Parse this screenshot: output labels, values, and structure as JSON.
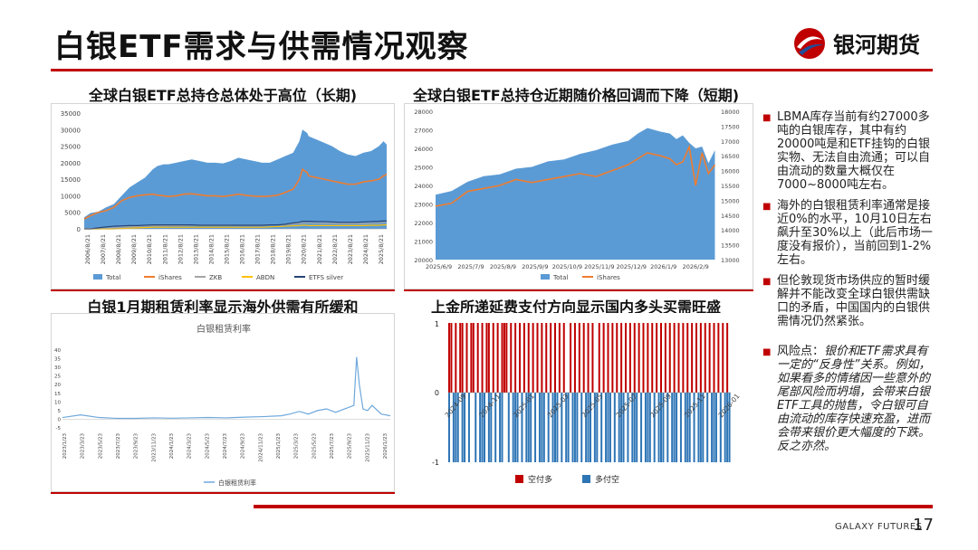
{
  "header": {
    "title": "白银ETF需求与供需情况观察",
    "logo_text": "银河期货"
  },
  "panels": {
    "tl_title": "全球白银ETF总持仓总体处于高位（长期)",
    "tr_title": "全球白银ETF总持仓近期随价格回调而下降（短期)",
    "bl_title": "白银1月期租赁利率显示海外供需有所缓和",
    "br_title": "上金所递延费支付方向显示国内多头买需旺盛"
  },
  "bullets": [
    "LBMA库存当前有约27000多吨的白银库存，其中有约20000吨是和ETF挂钩的白银实物、无法自由流通；可以自由流动的数量大概仅在7000~8000吨左右。",
    "海外的白银租赁利率通常是接近0%的水平，10月10日左右飙升至30%以上（此后市场一度没有报价），当前回到1-2%左右。",
    "但伦敦现货市场供应的暂时缓解并不能改变全球白银供需缺口的矛盾，中国国内的白银供需情况仍然紧张。"
  ],
  "risk": {
    "label": "风险点：",
    "body": "银价和ETF需求具有一定的“反身性”关系。例如，如果看多的情绪因一些意外的尾部风险而坍塌，会带来白银ETF工具的抛售，令白银可自由流动的库存快速充盈，进而会带来银价更大幅度的下跌。反之亦然。"
  },
  "footer": {
    "brand": "GALAXY FUTURES",
    "page": "17"
  },
  "colors": {
    "accent": "#c00000",
    "total_blue": "#5b9bd5",
    "ishares_orange": "#ed7d31",
    "zkb_gray": "#a5a5a5",
    "abdn_gold": "#ffc000",
    "etfs_navy": "#264478",
    "bar_red": "#c00000",
    "bar_blue": "#2e75b6"
  },
  "chart_data": [
    {
      "type": "area",
      "title": "全球白银ETF总持仓总体处于高位（长期)",
      "ylim": [
        0,
        35000
      ],
      "y_ticks": [
        "35000",
        "30000",
        "25000",
        "20000",
        "15000",
        "10000",
        "5000",
        "0"
      ],
      "x_ticks": [
        "2006/8/21",
        "2007/8/21",
        "2008/8/21",
        "2009/8/21",
        "2010/8/21",
        "2011/8/21",
        "2012/8/21",
        "2013/8/21",
        "2014/8/21",
        "2015/8/21",
        "2016/8/21",
        "2017/8/21",
        "2018/8/21",
        "2019/8/21",
        "2020/8/21",
        "2021/8/21",
        "2022/8/21",
        "2023/8/21",
        "2024/8/21",
        "2025/8/21"
      ],
      "legend": [
        "Total",
        "iShares",
        "ZKB",
        "ABDN",
        "ETFS silver"
      ],
      "legend_position": "bottom",
      "x_years": [
        2006.6,
        2007,
        2007.5,
        2008,
        2008.5,
        2009,
        2009.5,
        2010,
        2010.5,
        2011,
        2011.3,
        2011.7,
        2012,
        2012.5,
        2013,
        2013.5,
        2014,
        2014.5,
        2015,
        2015.5,
        2016,
        2016.5,
        2017,
        2017.5,
        2018,
        2018.5,
        2019,
        2019.5,
        2020,
        2020.4,
        2020.6,
        2020.9,
        2021,
        2021.5,
        2022,
        2022.5,
        2023,
        2023.5,
        2024,
        2024.5,
        2025,
        2025.5,
        2025.8,
        2026
      ],
      "series": [
        {
          "name": "Total",
          "values": [
            3500,
            4800,
            5200,
            6500,
            7500,
            10000,
            12500,
            14000,
            15500,
            18000,
            19000,
            19500,
            19500,
            20000,
            20500,
            21000,
            20500,
            20000,
            20000,
            19800,
            20500,
            21500,
            21000,
            20500,
            20000,
            20000,
            21000,
            22000,
            23000,
            26500,
            30000,
            29000,
            28000,
            27000,
            26000,
            25000,
            23500,
            22500,
            22000,
            23000,
            23500,
            25000,
            26500,
            25500
          ]
        },
        {
          "name": "iShares",
          "values": [
            3000,
            4000,
            5000,
            5500,
            6500,
            8500,
            9500,
            10000,
            10300,
            10500,
            10200,
            10000,
            9800,
            10000,
            10500,
            10600,
            10300,
            10000,
            10000,
            9800,
            10100,
            10500,
            10100,
            9900,
            9800,
            9900,
            10200,
            11000,
            12000,
            15000,
            18000,
            17000,
            16000,
            15500,
            15000,
            14500,
            14000,
            13500,
            13500,
            14200,
            14500,
            15000,
            16000,
            16500
          ]
        },
        {
          "name": "ZKB",
          "values": [
            0,
            0,
            0,
            100,
            300,
            500,
            600,
            700,
            800,
            900,
            900,
            900,
            1000,
            1000,
            1000,
            1100,
            1000,
            1000,
            1000,
            1000,
            1000,
            1100,
            1100,
            1100,
            1100,
            1200,
            1200,
            1300,
            1400,
            1600,
            1800,
            1800,
            1800,
            1700,
            1700,
            1700,
            1600,
            1600,
            1600,
            1600,
            1700,
            1800,
            1900,
            1900
          ]
        },
        {
          "name": "ABDN",
          "values": [
            0,
            0,
            0,
            0,
            0,
            100,
            200,
            300,
            400,
            500,
            500,
            500,
            500,
            500,
            500,
            500,
            500,
            500,
            500,
            500,
            500,
            500,
            500,
            500,
            500,
            600,
            700,
            800,
            900,
            1000,
            1100,
            1100,
            1000,
            1000,
            1000,
            1000,
            1000,
            1000,
            1000,
            1000,
            1100,
            1100,
            1200,
            1200
          ]
        },
        {
          "name": "ETFS silver",
          "values": [
            0,
            0,
            300,
            600,
            800,
            900,
            1000,
            1000,
            1100,
            1200,
            1200,
            1200,
            1200,
            1200,
            1200,
            1200,
            1100,
            1100,
            1100,
            1100,
            1100,
            1100,
            1100,
            1100,
            1100,
            1200,
            1200,
            1400,
            1800,
            2000,
            2300,
            2300,
            2300,
            2200,
            2200,
            2100,
            2000,
            2000,
            2000,
            2100,
            2200,
            2300,
            2400,
            2400
          ]
        }
      ]
    },
    {
      "type": "area",
      "title": "全球白银ETF总持仓近期随价格回调而下降（短期)",
      "ylim": [
        20000,
        28000
      ],
      "y2lim": [
        13000,
        18000
      ],
      "y_ticks": [
        "28000",
        "27000",
        "26000",
        "25000",
        "24000",
        "23000",
        "22000",
        "21000",
        "20000"
      ],
      "y2_ticks": [
        "18000",
        "17500",
        "17000",
        "16500",
        "16000",
        "15500",
        "15000",
        "14500",
        "14000",
        "13500",
        "13000"
      ],
      "x_ticks": [
        "2025/6/9",
        "2025/7/9",
        "2025/8/9",
        "2025/9/9",
        "2025/10/9",
        "2025/11/9",
        "2025/12/9",
        "2026/1/9",
        "2026/2/9"
      ],
      "legend": [
        "Total",
        "iShares"
      ],
      "legend_position": "bottom",
      "x_months": [
        0,
        0.5,
        1,
        1.5,
        2,
        2.5,
        3,
        3.5,
        4,
        4.5,
        5,
        5.5,
        6,
        6.3,
        6.6,
        7,
        7.3,
        7.5,
        7.7,
        7.9,
        8.1,
        8.3,
        8.5,
        8.7
      ],
      "series": [
        {
          "name": "Total",
          "axis": "left",
          "values": [
            23500,
            23700,
            24200,
            24500,
            24600,
            24900,
            25000,
            25300,
            25400,
            25700,
            25900,
            26200,
            26400,
            26800,
            27100,
            26900,
            26800,
            26500,
            26700,
            26300,
            26000,
            26100,
            25200,
            25900
          ]
        },
        {
          "name": "iShares",
          "axis": "right",
          "values": [
            14800,
            14900,
            15300,
            15400,
            15500,
            15700,
            15600,
            15700,
            15800,
            15900,
            15800,
            16000,
            16200,
            16400,
            16600,
            16500,
            16400,
            16200,
            16300,
            16800,
            15500,
            16600,
            15900,
            16200
          ]
        }
      ]
    },
    {
      "type": "line",
      "title": "白银租赁利率",
      "ylim": [
        -5,
        40
      ],
      "y_ticks": [
        "40",
        "35",
        "30",
        "25",
        "20",
        "15",
        "10",
        "5",
        "0",
        "-5"
      ],
      "x_ticks": [
        "2023/1/23",
        "2023/3/23",
        "2023/5/23",
        "2023/7/23",
        "2023/9/23",
        "2023/11/23",
        "2024/1/23",
        "2024/3/23",
        "2024/5/23",
        "2024/7/23",
        "2024/9/23",
        "2024/11/23",
        "2025/1/23",
        "2025/3/23",
        "2025/5/23",
        "2025/7/23",
        "2025/9/23",
        "2025/11/23",
        "2026/1/23"
      ],
      "legend": [
        "白银租赁利率"
      ],
      "legend_position": "bottom",
      "series": [
        {
          "name": "白银租赁利率",
          "x_months": [
            0,
            2,
            4,
            6,
            8,
            10,
            12,
            14,
            16,
            18,
            20,
            22,
            24,
            25,
            26,
            27,
            28,
            29,
            30,
            31,
            32,
            32.3,
            32.6,
            33,
            33.5,
            34,
            35,
            36
          ],
          "values": [
            1,
            2.5,
            1,
            0.5,
            0.5,
            0.8,
            0.6,
            0.8,
            1,
            0.8,
            1.2,
            1.5,
            2,
            3,
            4.5,
            3,
            5,
            6,
            4,
            6,
            8,
            36,
            20,
            6,
            5,
            8,
            3,
            2
          ]
        }
      ]
    },
    {
      "type": "bar",
      "title": "上金所递延费支付方向显示国内多头买需旺盛",
      "ylim": [
        -1,
        1
      ],
      "y_ticks": [
        "1",
        "0",
        "-1"
      ],
      "x_ticks": [
        "2024-09",
        "2024-11",
        "2025-01",
        "2025-03",
        "2025-05",
        "2025-07",
        "2025-09",
        "2025-11",
        "2026-01"
      ],
      "legend": [
        "空付多",
        "多付空"
      ],
      "legend_position": "bottom",
      "series": [
        {
          "name": "空付多",
          "value": 1,
          "days": [
            0,
            1,
            3,
            5,
            6,
            8,
            10,
            11,
            13,
            15,
            17,
            18,
            20,
            22,
            24,
            25,
            26,
            28,
            30,
            32,
            34,
            36,
            38,
            40,
            42,
            44,
            46,
            48,
            50,
            52,
            55,
            57,
            59,
            61,
            63,
            65,
            68,
            70,
            72,
            74,
            76,
            78,
            80,
            82,
            84,
            86,
            88,
            90,
            92,
            94,
            96,
            98,
            100,
            102,
            104,
            106,
            108,
            110,
            112,
            114,
            116,
            118,
            120,
            122,
            124,
            126
          ]
        },
        {
          "name": "多付空",
          "value": -1,
          "days": [
            2,
            4,
            7,
            9,
            12,
            14,
            16,
            19,
            21,
            23,
            27,
            29,
            31,
            33,
            35,
            37,
            39,
            41,
            43,
            45,
            47,
            49,
            51,
            53,
            54,
            56,
            58,
            60,
            62,
            64,
            66,
            67,
            69,
            71,
            73,
            75,
            77,
            79,
            81,
            83,
            85,
            87,
            89,
            91,
            93,
            95,
            97,
            99,
            101,
            103,
            105,
            107,
            109,
            111,
            113,
            115,
            117,
            119,
            121,
            123,
            125,
            127
          ]
        }
      ]
    }
  ]
}
